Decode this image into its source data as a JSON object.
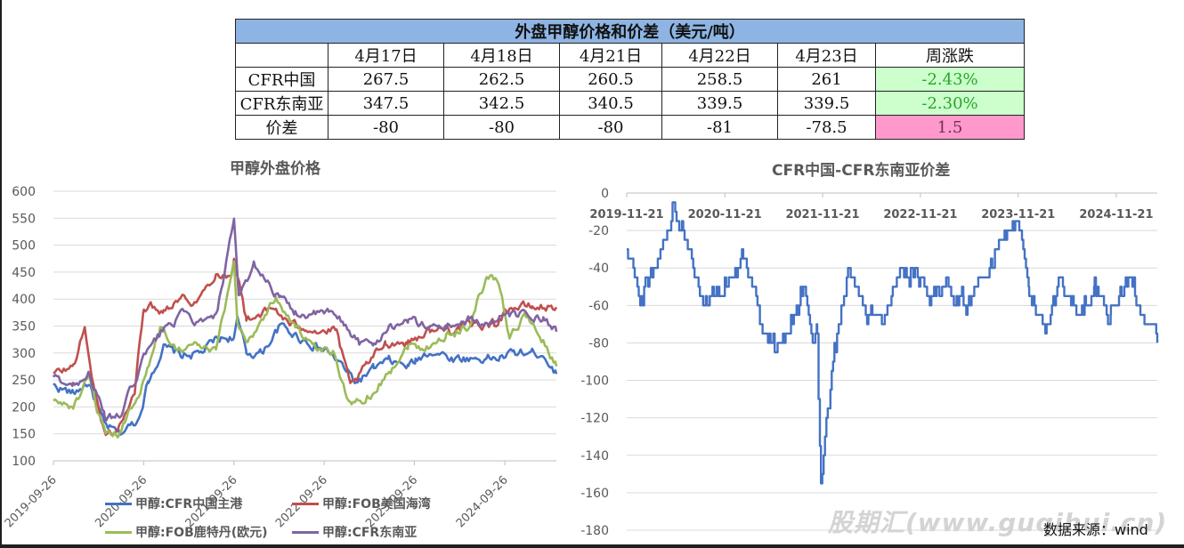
{
  "table": {
    "title": "外盘甲醇价格和价差（美元/吨）",
    "dates": [
      "4月17日",
      "4月18日",
      "4月21日",
      "4月22日",
      "4月23日"
    ],
    "change_header": "周涨跌",
    "rows": [
      {
        "label": "CFR中国",
        "values": [
          "267.5",
          "262.5",
          "260.5",
          "258.5",
          "261"
        ],
        "change": "-2.43%"
      },
      {
        "label": "CFR东南亚",
        "values": [
          "347.5",
          "342.5",
          "340.5",
          "339.5",
          "339.5"
        ],
        "change": "-2.30%"
      },
      {
        "label": "价差",
        "values": [
          "-80",
          "-80",
          "-80",
          "-81",
          "-78.5"
        ],
        "change": "1.5"
      }
    ],
    "colors": {
      "title_bg": "#8eb4e3",
      "up_bg": "#ccffcc",
      "spread_bg": "#ff99cc"
    }
  },
  "chart_data": [
    {
      "type": "line",
      "title": "甲醇外盘价格",
      "ylim": [
        100,
        600
      ],
      "yticks": [
        100,
        150,
        200,
        250,
        300,
        350,
        400,
        450,
        500,
        550,
        600
      ],
      "xlim": [
        "2019-09-26",
        "2025-04-23"
      ],
      "xtick_labels": [
        "2019-09-26",
        "2020-09-26",
        "2021-09-26",
        "2022-09-26",
        "2023-09-26",
        "2024-09-26"
      ],
      "legend_position": "bottom",
      "series": [
        {
          "name": "甲醇:CFR中国主港",
          "color": "#4472c4",
          "x": [
            "2019-09-26",
            "2019-12-15",
            "2020-02-15",
            "2020-04-20",
            "2020-06-20",
            "2020-09-01",
            "2020-10-15",
            "2020-12-15",
            "2021-03-01",
            "2021-05-15",
            "2021-07-15",
            "2021-09-26",
            "2021-10-10",
            "2021-11-15",
            "2022-01-15",
            "2022-04-01",
            "2022-06-15",
            "2022-09-01",
            "2022-10-20",
            "2022-12-10",
            "2023-02-01",
            "2023-04-15",
            "2023-06-15",
            "2023-09-01",
            "2023-10-01",
            "2023-12-01",
            "2024-03-01",
            "2024-06-01",
            "2024-09-01",
            "2024-11-01",
            "2025-01-15",
            "2025-03-01",
            "2025-04-23"
          ],
          "y": [
            240,
            225,
            245,
            165,
            150,
            175,
            250,
            310,
            295,
            300,
            325,
            330,
            360,
            300,
            300,
            350,
            330,
            310,
            300,
            275,
            245,
            270,
            285,
            275,
            285,
            305,
            290,
            290,
            290,
            300,
            300,
            300,
            261
          ]
        },
        {
          "name": "甲醇:FOB美国海湾",
          "color": "#c0504d",
          "x": [
            "2019-09-26",
            "2019-12-15",
            "2020-01-31",
            "2020-03-15",
            "2020-04-25",
            "2020-06-20",
            "2020-08-20",
            "2020-09-26",
            "2020-12-15",
            "2021-02-15",
            "2021-05-01",
            "2021-07-15",
            "2021-09-15",
            "2021-09-26",
            "2021-11-15",
            "2022-01-15",
            "2022-03-15",
            "2022-05-15",
            "2022-07-15",
            "2022-09-15",
            "2022-11-15",
            "2023-01-10",
            "2023-03-15",
            "2023-06-01",
            "2023-09-01",
            "2023-11-15",
            "2024-02-15",
            "2024-05-15",
            "2024-08-15",
            "2024-10-15",
            "2025-01-15",
            "2025-04-23"
          ],
          "y": [
            260,
            275,
            345,
            215,
            145,
            165,
            225,
            390,
            380,
            405,
            395,
            450,
            440,
            480,
            360,
            375,
            380,
            350,
            350,
            340,
            340,
            235,
            275,
            320,
            320,
            340,
            345,
            350,
            355,
            385,
            385,
            385
          ]
        },
        {
          "name": "甲醇:FOB鹿特丹(欧元)",
          "color": "#9bbb59",
          "x": [
            "2019-09-26",
            "2019-12-15",
            "2020-02-15",
            "2020-04-25",
            "2020-06-20",
            "2020-09-26",
            "2020-12-01",
            "2021-02-15",
            "2021-05-01",
            "2021-07-15",
            "2021-09-26",
            "2021-10-10",
            "2021-11-20",
            "2022-01-15",
            "2022-03-15",
            "2022-06-01",
            "2022-09-01",
            "2022-11-01",
            "2023-01-15",
            "2023-04-15",
            "2023-06-15",
            "2023-09-01",
            "2023-11-01",
            "2024-02-01",
            "2024-05-01",
            "2024-07-15",
            "2024-09-01",
            "2024-10-15",
            "2024-12-15",
            "2025-02-15",
            "2025-04-23"
          ],
          "y": [
            210,
            200,
            250,
            140,
            150,
            250,
            345,
            310,
            315,
            300,
            470,
            360,
            320,
            360,
            405,
            350,
            300,
            300,
            200,
            230,
            265,
            315,
            310,
            330,
            350,
            440,
            435,
            330,
            370,
            335,
            275
          ]
        },
        {
          "name": "甲醇:CFR东南亚",
          "color": "#8064a2",
          "x": [
            "2019-09-26",
            "2019-12-15",
            "2020-02-15",
            "2020-04-20",
            "2020-06-20",
            "2020-09-26",
            "2020-12-15",
            "2021-03-01",
            "2021-05-15",
            "2021-07-15",
            "2021-09-26",
            "2021-10-15",
            "2021-12-15",
            "2022-02-15",
            "2022-04-01",
            "2022-06-01",
            "2022-08-15",
            "2022-10-15",
            "2022-12-15",
            "2023-02-15",
            "2023-04-15",
            "2023-06-15",
            "2023-09-01",
            "2023-11-15",
            "2024-02-01",
            "2024-05-01",
            "2024-08-01",
            "2024-10-15",
            "2025-01-15",
            "2025-03-01",
            "2025-04-23"
          ],
          "y": [
            255,
            240,
            265,
            180,
            180,
            290,
            345,
            370,
            355,
            365,
            540,
            400,
            465,
            430,
            400,
            375,
            370,
            375,
            355,
            320,
            315,
            350,
            360,
            350,
            350,
            360,
            355,
            370,
            370,
            360,
            339.5
          ]
        }
      ]
    },
    {
      "type": "line",
      "title": "CFR中国-CFR东南亚价差",
      "ylim": [
        -180,
        0
      ],
      "yticks": [
        0,
        -20,
        -40,
        -60,
        -80,
        -100,
        -120,
        -140,
        -160,
        -180
      ],
      "xlim": [
        "2019-11-21",
        "2025-04-23"
      ],
      "xtick_labels": [
        "2019-11-21",
        "2020-11-21",
        "2021-11-21",
        "2022-11-21",
        "2023-11-21",
        "2024-11-21"
      ],
      "series": [
        {
          "name": "CFR中国-CFR东南亚价差",
          "color": "#4472c4",
          "x": [
            "2019-11-21",
            "2020-01-10",
            "2020-03-01",
            "2020-05-15",
            "2020-07-01",
            "2020-09-01",
            "2020-11-01",
            "2020-12-15",
            "2021-02-01",
            "2021-04-01",
            "2021-06-01",
            "2021-08-01",
            "2021-09-15",
            "2021-10-15",
            "2021-11-01",
            "2021-11-15",
            "2021-12-15",
            "2022-01-20",
            "2022-03-01",
            "2022-05-01",
            "2022-07-01",
            "2022-09-01",
            "2022-11-01",
            "2023-01-01",
            "2023-03-01",
            "2023-05-01",
            "2023-06-15",
            "2023-08-01",
            "2023-10-01",
            "2023-11-15",
            "2024-01-01",
            "2024-03-01",
            "2024-05-01",
            "2024-07-01",
            "2024-09-01",
            "2024-11-01",
            "2025-01-15",
            "2025-03-15",
            "2025-04-23"
          ],
          "y": [
            -30,
            -55,
            -45,
            -10,
            -20,
            -60,
            -55,
            -45,
            -30,
            -70,
            -85,
            -65,
            -50,
            -80,
            -75,
            -160,
            -110,
            -70,
            -40,
            -65,
            -70,
            -45,
            -40,
            -55,
            -45,
            -60,
            -50,
            -45,
            -20,
            -15,
            -55,
            -70,
            -45,
            -65,
            -50,
            -65,
            -45,
            -70,
            -78.5
          ]
        }
      ]
    }
  ],
  "source_note": "数据来源：wind",
  "watermark": "股期汇(www.guqihui.cn)"
}
